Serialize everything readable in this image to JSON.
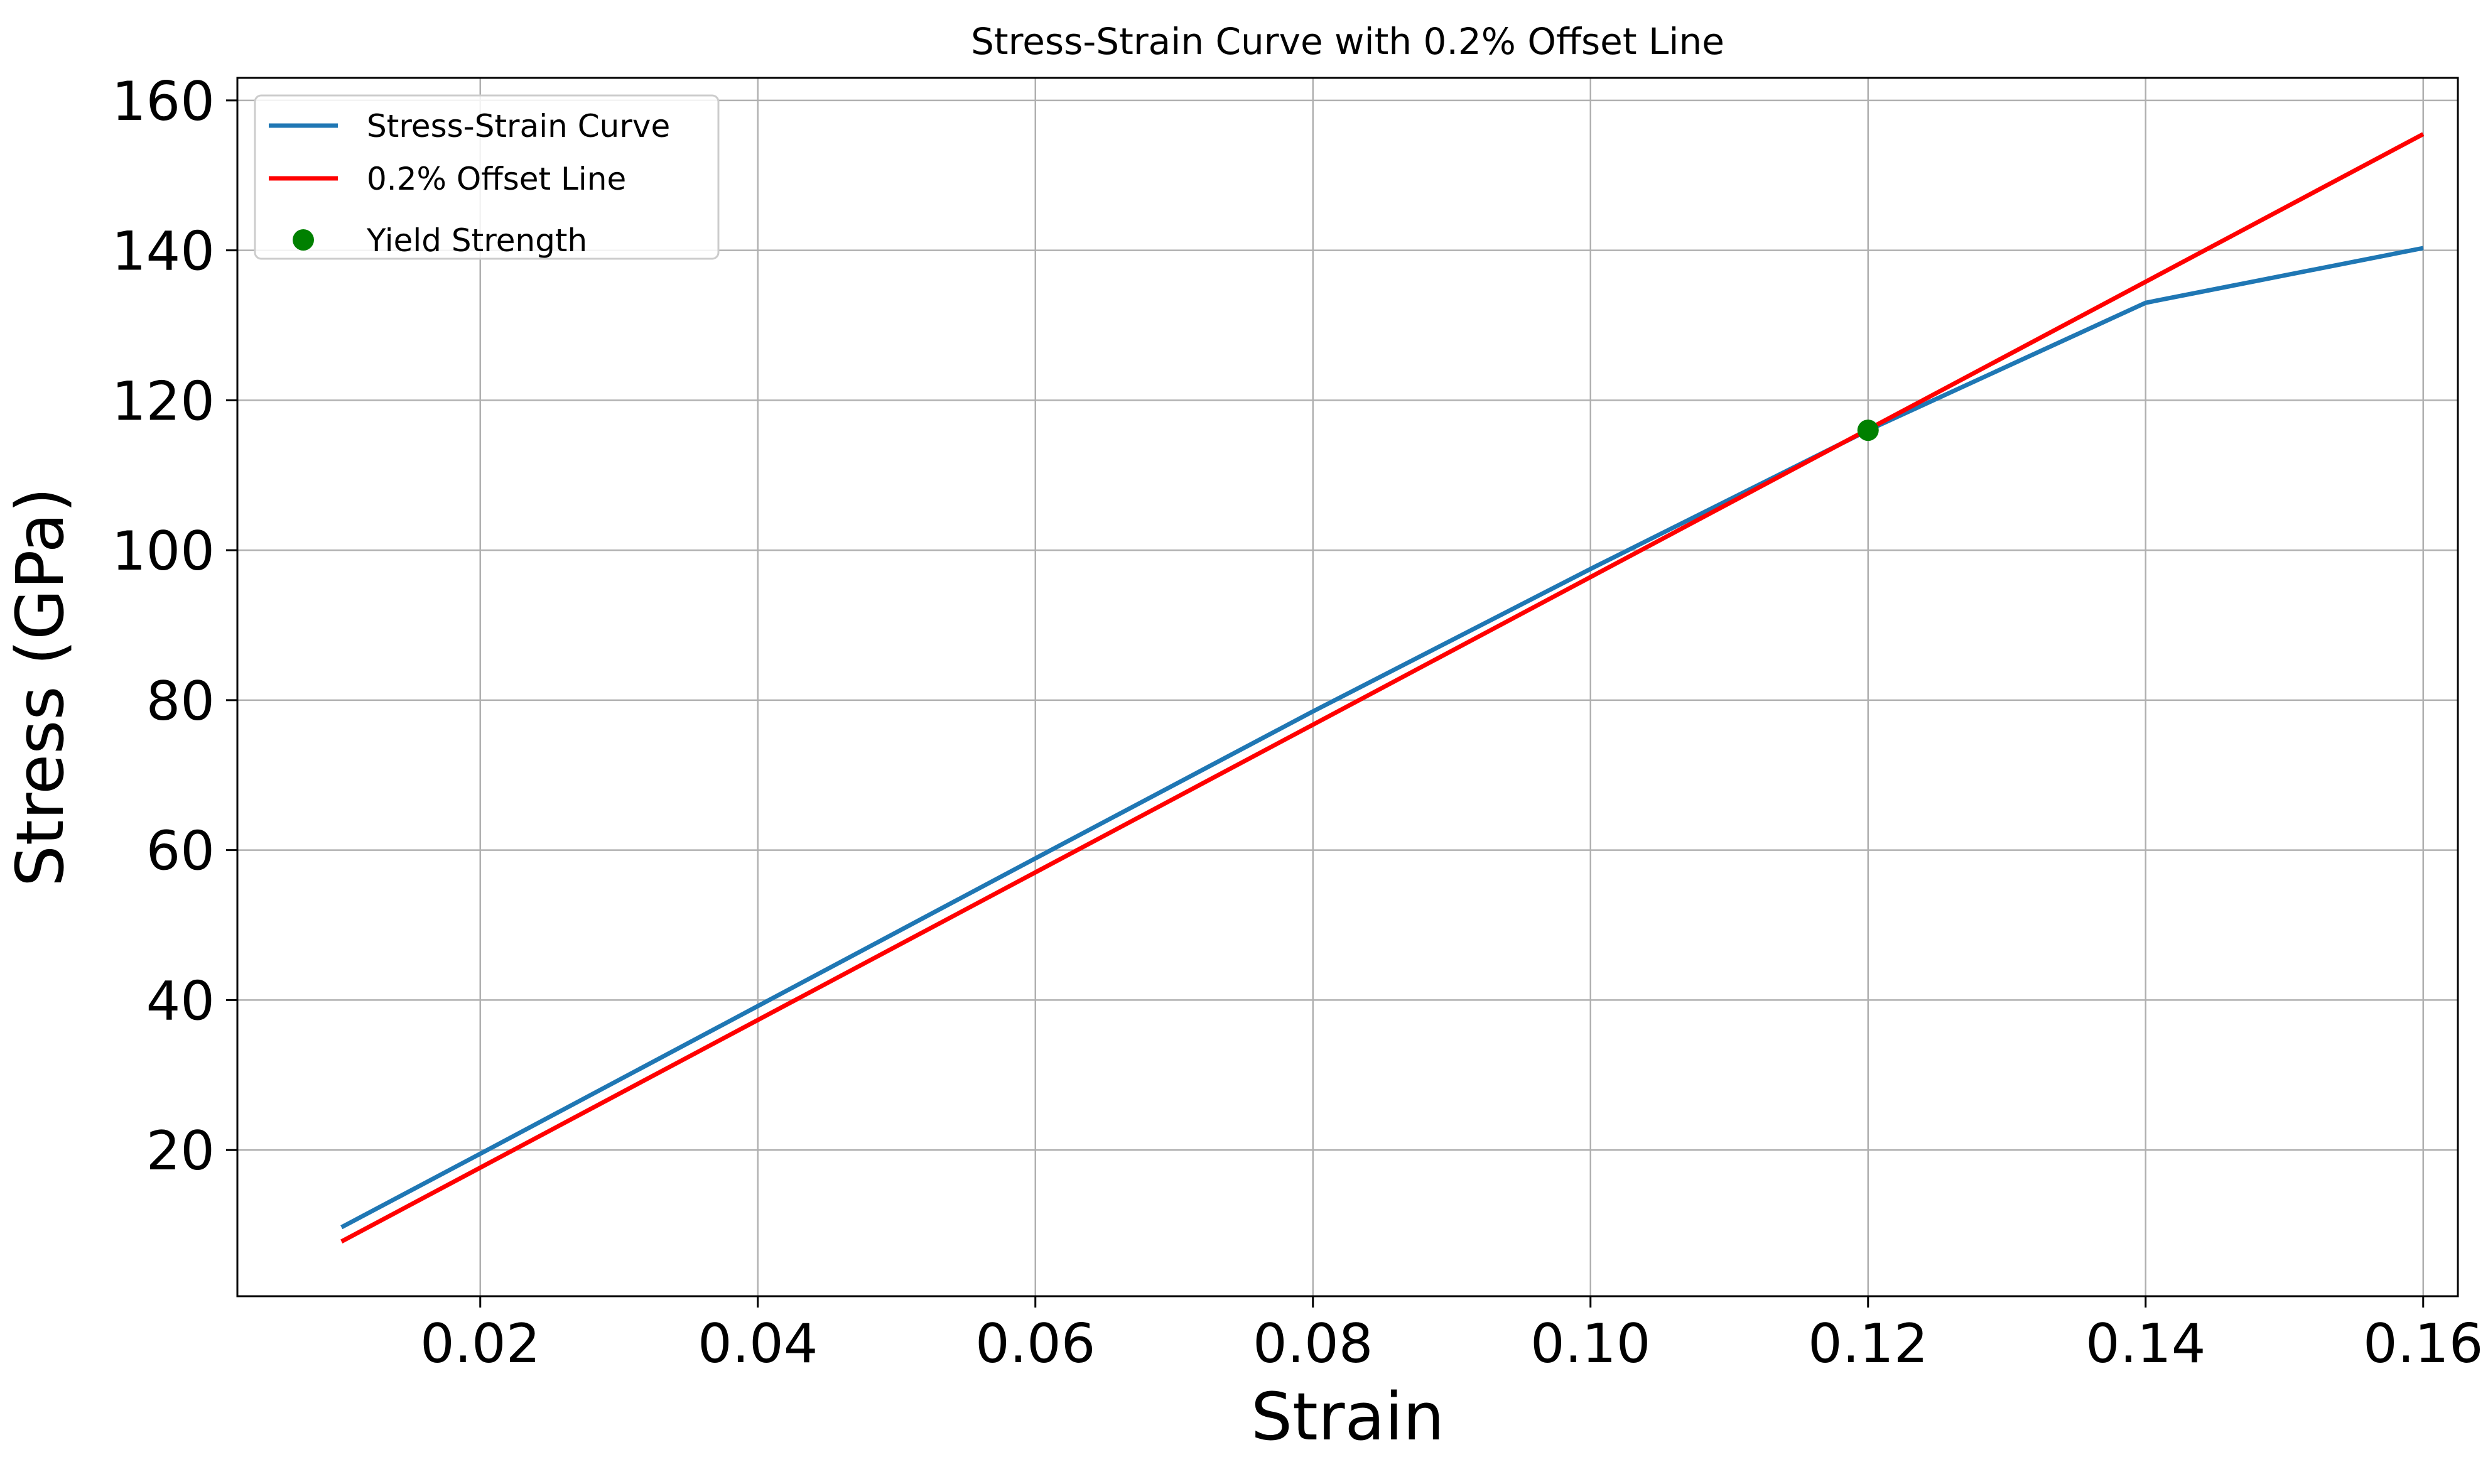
{
  "chart_data": {
    "type": "line",
    "title": "Stress-Strain Curve with 0.2% Offset Line",
    "xlabel": "Strain",
    "ylabel": "Stress (GPa)",
    "xlim": [
      0.0025,
      0.1625
    ],
    "ylim": [
      0.5,
      163
    ],
    "xticks": [
      0.02,
      0.04,
      0.06,
      0.08,
      0.1,
      0.12,
      0.14,
      0.16
    ],
    "xtick_labels": [
      "0.02",
      "0.04",
      "0.06",
      "0.08",
      "0.10",
      "0.12",
      "0.14",
      "0.16"
    ],
    "yticks": [
      20,
      40,
      60,
      80,
      100,
      120,
      140,
      160
    ],
    "ytick_labels": [
      "20",
      "40",
      "60",
      "80",
      "100",
      "120",
      "140",
      "160"
    ],
    "grid": true,
    "legend_position": "upper-left",
    "series": [
      {
        "name": "Stress-Strain Curve",
        "kind": "line",
        "color": "#1f77b4",
        "x": [
          0.01,
          0.02,
          0.04,
          0.06,
          0.08,
          0.1,
          0.12,
          0.14,
          0.16
        ],
        "y": [
          9.7,
          19.5,
          39.2,
          58.9,
          78.5,
          97.5,
          116.0,
          133.0,
          140.3
        ]
      },
      {
        "name": "0.2% Offset Line",
        "kind": "line",
        "color": "#ff0000",
        "x": [
          0.01,
          0.16
        ],
        "y": [
          7.8,
          155.5
        ]
      },
      {
        "name": "Yield Strength",
        "kind": "scatter",
        "color": "#008000",
        "x": [
          0.12
        ],
        "y": [
          116.0
        ]
      }
    ]
  }
}
